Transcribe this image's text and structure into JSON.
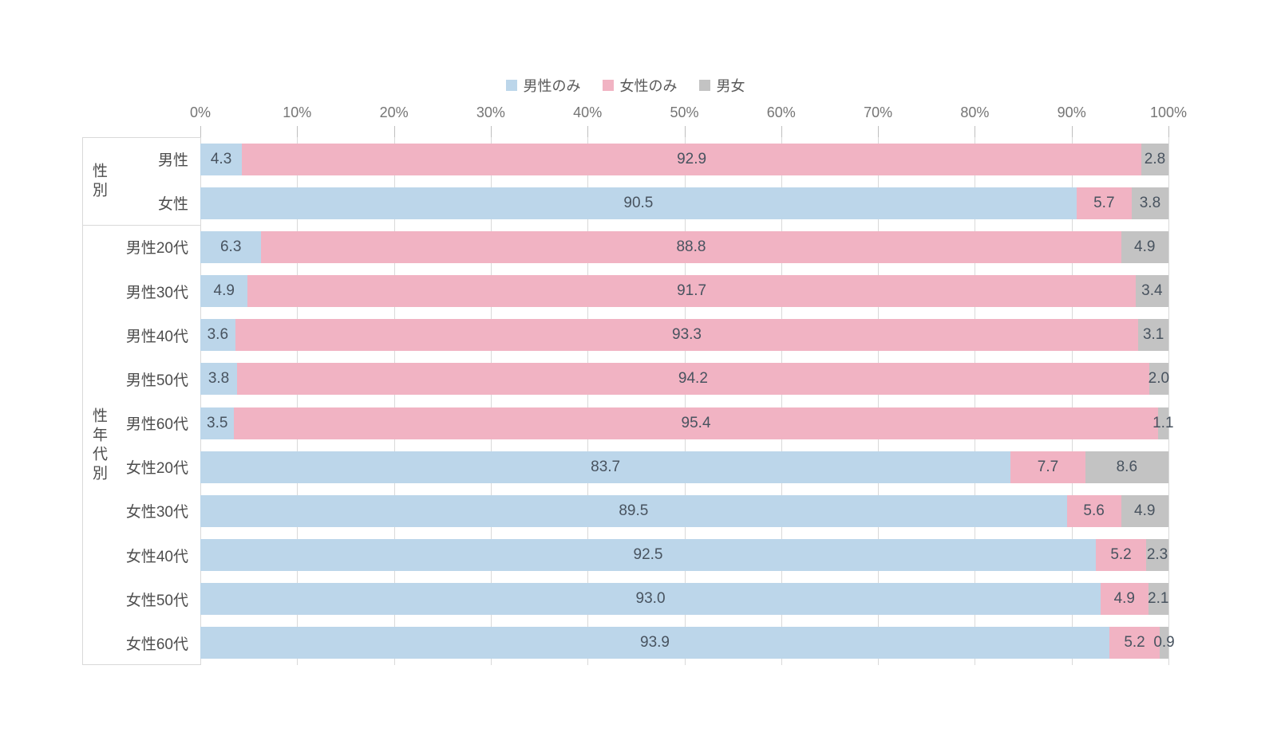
{
  "chart_data": {
    "type": "bar",
    "orientation": "horizontal-stacked",
    "title": "",
    "legend_position": "top-center",
    "legend": [
      {
        "name": "male-only",
        "label": "男性のみ",
        "color": "#bcd6ea"
      },
      {
        "name": "female-only",
        "label": "女性のみ",
        "color": "#f1b3c3"
      },
      {
        "name": "both",
        "label": "男女",
        "color": "#c3c3c3"
      }
    ],
    "x_axis": {
      "min": 0,
      "max": 100,
      "tick_labels": [
        "0%",
        "10%",
        "20%",
        "30%",
        "40%",
        "50%",
        "60%",
        "70%",
        "80%",
        "90%",
        "100%"
      ],
      "grid": true
    },
    "groups": [
      {
        "label": "性別",
        "rows": [
          {
            "label": "男性",
            "values": [
              "4.3",
              "92.9",
              "2.8"
            ]
          },
          {
            "label": "女性",
            "values": [
              "90.5",
              "5.7",
              "3.8"
            ]
          }
        ]
      },
      {
        "label": "性年代別",
        "rows": [
          {
            "label": "男性20代",
            "values": [
              "6.3",
              "88.8",
              "4.9"
            ]
          },
          {
            "label": "男性30代",
            "values": [
              "4.9",
              "91.7",
              "3.4"
            ]
          },
          {
            "label": "男性40代",
            "values": [
              "3.6",
              "93.3",
              "3.1"
            ]
          },
          {
            "label": "男性50代",
            "values": [
              "3.8",
              "94.2",
              "2.0"
            ]
          },
          {
            "label": "男性60代",
            "values": [
              "3.5",
              "95.4",
              "1.1"
            ]
          },
          {
            "label": "女性20代",
            "values": [
              "83.7",
              "7.7",
              "8.6"
            ]
          },
          {
            "label": "女性30代",
            "values": [
              "89.5",
              "5.6",
              "4.9"
            ]
          },
          {
            "label": "女性40代",
            "values": [
              "92.5",
              "5.2",
              "2.3"
            ]
          },
          {
            "label": "女性50代",
            "values": [
              "93.0",
              "4.9",
              "2.1"
            ]
          },
          {
            "label": "女性60代",
            "values": [
              "93.9",
              "5.2",
              "0.9"
            ]
          }
        ]
      }
    ],
    "colors": {
      "male_only": "#bcd6ea",
      "female_only": "#f1b3c3",
      "both": "#c3c3c3",
      "grid": "#d9d9d9",
      "value_text": "#48535f",
      "axis_text": "#757575",
      "label_text": "#4d4d4d"
    }
  }
}
